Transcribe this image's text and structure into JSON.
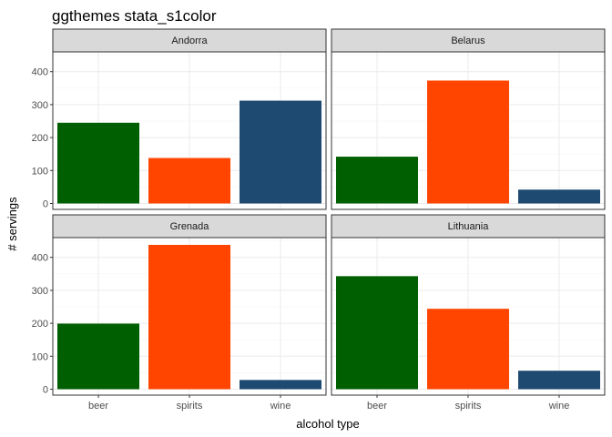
{
  "chart_data": {
    "type": "bar",
    "title": "ggthemes stata_s1color",
    "xlabel": "alcohol type",
    "ylabel": "# servings",
    "categories": [
      "beer",
      "spirits",
      "wine"
    ],
    "yticks": [
      0,
      100,
      200,
      300,
      400
    ],
    "ylim": [
      -18,
      460
    ],
    "grid": true,
    "legend": "none",
    "colors": {
      "beer": "#005f00",
      "spirits": "#ff4500",
      "wine": "#1e4a72",
      "strip_bg": "#d9d9d9",
      "grid_major": "#ebebeb",
      "grid_minor": "#f5f5f5",
      "border": "#333333"
    },
    "facets": [
      {
        "name": "Andorra",
        "values": [
          245,
          138,
          312
        ]
      },
      {
        "name": "Belarus",
        "values": [
          142,
          373,
          42
        ]
      },
      {
        "name": "Grenada",
        "values": [
          199,
          438,
          28
        ]
      },
      {
        "name": "Lithuania",
        "values": [
          343,
          244,
          56
        ]
      }
    ]
  }
}
